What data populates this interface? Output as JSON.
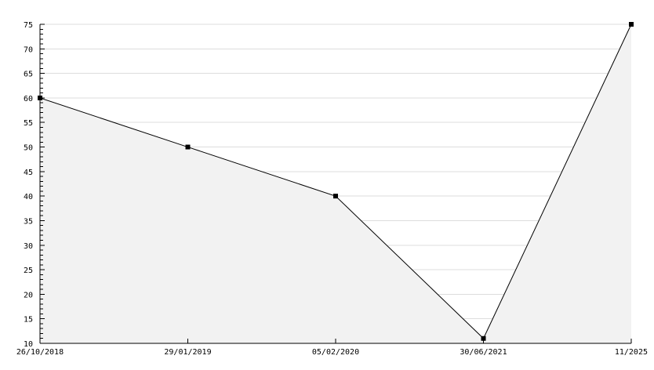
{
  "chart_data": {
    "type": "area",
    "categories": [
      "26/10/2018",
      "29/01/2019",
      "05/02/2020",
      "30/06/2021",
      "11/2025"
    ],
    "values": [
      60,
      50,
      40,
      11,
      75
    ],
    "title": "",
    "xlabel": "",
    "ylabel": "",
    "ylim": [
      10,
      75
    ],
    "yticks": [
      10,
      15,
      20,
      25,
      30,
      35,
      40,
      45,
      50,
      55,
      60,
      65,
      70,
      75
    ],
    "grid": true,
    "legend": "none",
    "colors": {
      "fill": "#f2f2f2",
      "line": "#000000",
      "grid": "#dddddd",
      "marker": "#000000"
    }
  }
}
